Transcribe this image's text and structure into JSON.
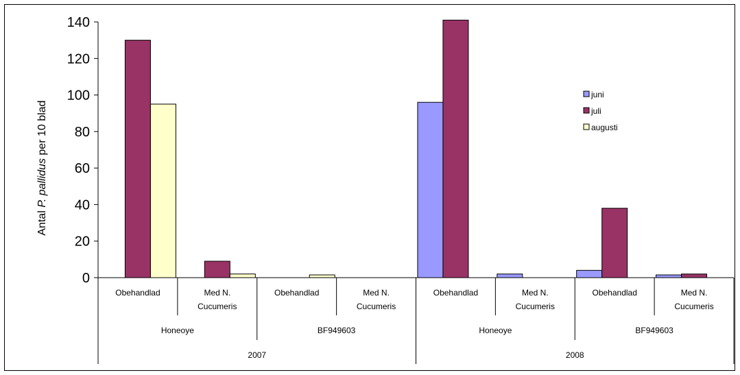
{
  "chart_data": {
    "type": "bar",
    "ylabel_parts": [
      "Antal ",
      "P. pallidus",
      " per 10 blad"
    ],
    "ylim": [
      0,
      140
    ],
    "yticks": [
      "0",
      "20",
      "40",
      "60",
      "80",
      "100",
      "120",
      "140"
    ],
    "categories": [
      {
        "lines": [
          "Obehandlad"
        ]
      },
      {
        "lines": [
          "Med N.",
          "Cucumeris"
        ]
      },
      {
        "lines": [
          "Obehandlad"
        ]
      },
      {
        "lines": [
          "Med N.",
          "Cucumeris"
        ]
      },
      {
        "lines": [
          "Obehandlad"
        ]
      },
      {
        "lines": [
          "Med N.",
          "Cucumeris"
        ]
      },
      {
        "lines": [
          "Obehandlad"
        ]
      },
      {
        "lines": [
          "Med N.",
          "Cucumeris"
        ]
      }
    ],
    "group_level_1": [
      "Honeoye",
      "BF949603",
      "Honeoye",
      "BF949603"
    ],
    "group_level_2": [
      "2007",
      "2008"
    ],
    "series": [
      {
        "name": "juni",
        "color": "#9999ff",
        "values": [
          0,
          0,
          0,
          0,
          96,
          2,
          4,
          1.5
        ]
      },
      {
        "name": "juli",
        "color": "#993366",
        "values": [
          130,
          9,
          0,
          0,
          141,
          0,
          38,
          2
        ]
      },
      {
        "name": "augusti",
        "color": "#ffffcc",
        "values": [
          95,
          2,
          1.5,
          0,
          0,
          0,
          0,
          0
        ]
      }
    ],
    "legend_position": "top-right",
    "grid": false
  }
}
